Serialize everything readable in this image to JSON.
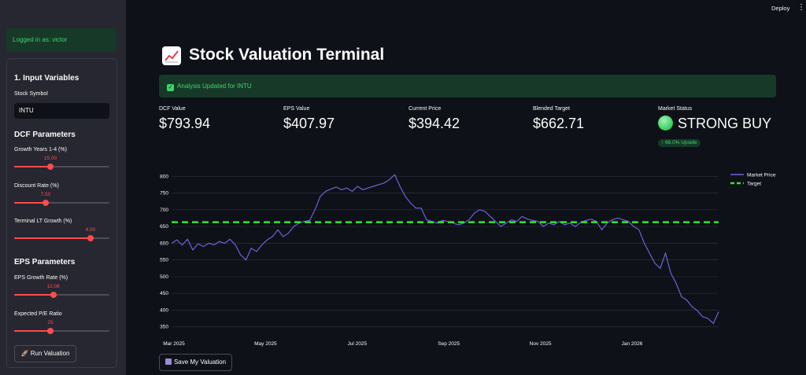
{
  "sidebar": {
    "login_text": "Logged in as: victor",
    "section_input": "1. Input Variables",
    "symbol_label": "Stock Symbol",
    "symbol_value": "INTU",
    "dcf_heading": "DCF Parameters",
    "eps_heading": "EPS Parameters",
    "sliders": [
      {
        "label": "Growth Years 1-4 (%)",
        "value": "15.00",
        "fraction": 0.38
      },
      {
        "label": "Discount Rate (%)",
        "value": "7.50",
        "fraction": 0.33
      },
      {
        "label": "Terminal LT Growth (%)",
        "value": "4.00",
        "fraction": 0.8
      },
      {
        "label": "EPS Growth Rate (%)",
        "value": "12.08",
        "fraction": 0.41
      },
      {
        "label": "Expected P/E Ratio",
        "value": "25",
        "fraction": 0.38
      }
    ],
    "run_button": "Run Valuation"
  },
  "header": {
    "deploy": "Deploy",
    "menu": "⋮"
  },
  "main": {
    "title": "Stock Valuation Terminal",
    "success": "Analysis Updated for INTU",
    "metrics": [
      {
        "label": "DCF Value",
        "value": "$793.94"
      },
      {
        "label": "EPS Value",
        "value": "$407.97"
      },
      {
        "label": "Current Price",
        "value": "$394.42"
      },
      {
        "label": "Blended Target",
        "value": "$662.71"
      },
      {
        "label": "Market Status",
        "value": "STRONG BUY"
      }
    ],
    "upside": "↑ 68.0% Upside",
    "save_button": "Save My Valuation"
  },
  "chart_data": {
    "type": "line",
    "x_ticks": [
      "Mar 2025",
      "May 2025",
      "Jul 2025",
      "Sep 2025",
      "Nov 2025",
      "Jan 2026"
    ],
    "y_ticks": [
      350,
      400,
      450,
      500,
      550,
      600,
      650,
      700,
      750,
      800
    ],
    "ylim": [
      340,
      810
    ],
    "series": [
      {
        "name": "Market Price",
        "color": "#6b63d8",
        "values": [
          600,
          610,
          595,
          612,
          580,
          598,
          590,
          600,
          595,
          605,
          600,
          612,
          595,
          565,
          550,
          585,
          575,
          595,
          610,
          620,
          640,
          620,
          630,
          650,
          660,
          665,
          668,
          700,
          740,
          755,
          762,
          768,
          760,
          765,
          755,
          770,
          760,
          765,
          770,
          775,
          780,
          790,
          805,
          770,
          740,
          720,
          705,
          705,
          670,
          665,
          660,
          668,
          665,
          660,
          655,
          660,
          670,
          690,
          700,
          695,
          680,
          665,
          650,
          660,
          670,
          665,
          680,
          672,
          668,
          665,
          650,
          660,
          655,
          665,
          655,
          660,
          650,
          662,
          668,
          672,
          665,
          640,
          660,
          670,
          675,
          670,
          665,
          650,
          640,
          600,
          570,
          540,
          525,
          570,
          510,
          480,
          440,
          430,
          410,
          398,
          380,
          375,
          360,
          395
        ]
      },
      {
        "name": "Target",
        "color": "#33e633",
        "value": 662.71
      }
    ],
    "grid": true,
    "legend": "top-right"
  }
}
